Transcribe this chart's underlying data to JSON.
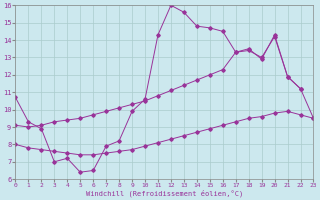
{
  "xlabel": "Windchill (Refroidissement éolien,°C)",
  "bg_color": "#cce8ee",
  "line_color": "#993399",
  "grid_color": "#aacccc",
  "xlim": [
    0,
    23
  ],
  "ylim": [
    6,
    16
  ],
  "xticks": [
    0,
    1,
    2,
    3,
    4,
    5,
    6,
    7,
    8,
    9,
    10,
    11,
    12,
    13,
    14,
    15,
    16,
    17,
    18,
    19,
    20,
    21,
    22,
    23
  ],
  "yticks": [
    6,
    7,
    8,
    9,
    10,
    11,
    12,
    13,
    14,
    15,
    16
  ],
  "curve1_x": [
    0,
    1,
    2,
    3,
    4,
    5,
    6,
    7,
    8,
    9,
    10,
    11,
    12,
    13,
    14,
    15,
    16,
    17,
    18,
    19,
    20,
    21,
    22,
    23
  ],
  "curve1_y": [
    10.7,
    9.3,
    8.9,
    7.0,
    7.2,
    6.4,
    6.5,
    7.9,
    8.2,
    9.9,
    10.6,
    14.3,
    16.0,
    15.6,
    14.8,
    14.7,
    14.5,
    13.3,
    13.5,
    12.9,
    14.3,
    11.9,
    11.2,
    9.5
  ],
  "curve2_x": [
    0,
    1,
    2,
    3,
    4,
    5,
    6,
    7,
    8,
    9,
    10,
    11,
    12,
    13,
    14,
    15,
    16,
    17,
    18,
    19,
    20,
    21,
    22
  ],
  "curve2_y": [
    9.1,
    9.0,
    9.1,
    9.3,
    9.4,
    9.5,
    9.7,
    9.9,
    10.1,
    10.3,
    10.5,
    10.8,
    11.1,
    11.4,
    11.7,
    12.0,
    12.3,
    13.3,
    13.4,
    13.0,
    14.2,
    11.9,
    11.2
  ],
  "curve3_x": [
    0,
    1,
    2,
    3,
    4,
    5,
    6,
    7,
    8,
    9,
    10,
    11,
    12,
    13,
    14,
    15,
    16,
    17,
    18,
    19,
    20,
    21,
    22,
    23
  ],
  "curve3_y": [
    8.0,
    7.8,
    7.7,
    7.6,
    7.5,
    7.4,
    7.4,
    7.5,
    7.6,
    7.7,
    7.9,
    8.1,
    8.3,
    8.5,
    8.7,
    8.9,
    9.1,
    9.3,
    9.5,
    9.6,
    9.8,
    9.9,
    9.7,
    9.5
  ]
}
